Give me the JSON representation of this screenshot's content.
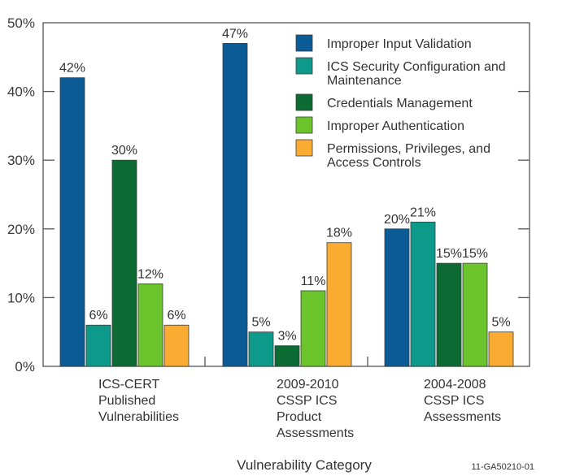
{
  "chart_data": {
    "type": "bar",
    "title": "",
    "xlabel": "Vulnerability Category",
    "ylabel": "",
    "ylim": [
      0,
      50
    ],
    "yticks": [
      0,
      10,
      20,
      30,
      40,
      50
    ],
    "ytick_labels": [
      "0%",
      "10%",
      "20%",
      "30%",
      "40%",
      "50%"
    ],
    "grid": false,
    "legend_position": "top-right",
    "categories": [
      [
        "ICS-CERT",
        "Published",
        "Vulnerabilities"
      ],
      [
        "2009-2010",
        "CSSP ICS",
        "Product",
        "Assessments"
      ],
      [
        "2004-2008",
        "CSSP ICS",
        "Assessments"
      ]
    ],
    "series": [
      {
        "name": [
          "Improper Input Validation"
        ],
        "color": "#0b5c96",
        "values": [
          42,
          47,
          20
        ],
        "labels": [
          "42%",
          "47%",
          "20%"
        ]
      },
      {
        "name": [
          "ICS Security Configuration and",
          "Maintenance"
        ],
        "color": "#0e9a8a",
        "values": [
          6,
          5,
          21
        ],
        "labels": [
          "6%",
          "5%",
          "21%"
        ]
      },
      {
        "name": [
          "Credentials Management"
        ],
        "color": "#0b6b32",
        "values": [
          30,
          3,
          15
        ],
        "labels": [
          "30%",
          "3%",
          "15%"
        ]
      },
      {
        "name": [
          "Improper Authentication"
        ],
        "color": "#6cc42c",
        "values": [
          12,
          11,
          15
        ],
        "labels": [
          "12%",
          "11%",
          "15%"
        ]
      },
      {
        "name": [
          "Permissions, Privileges, and",
          "Access Controls"
        ],
        "color": "#f9ab32",
        "values": [
          6,
          18,
          5
        ],
        "labels": [
          "6%",
          "18%",
          "5%"
        ]
      }
    ]
  },
  "figure_id": "11-GA50210-01"
}
